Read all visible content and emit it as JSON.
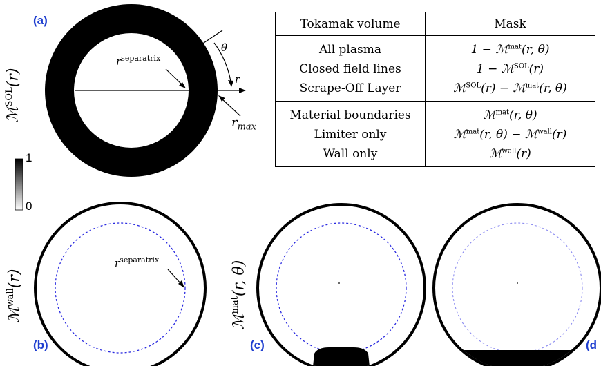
{
  "panels": {
    "a": {
      "label": "(a)",
      "ylabel_base": "ℳ",
      "ylabel_sup": "SOL",
      "ylabel_arg": "(r)",
      "annot_separatrix_base": "r",
      "annot_separatrix_sup": "separatrix",
      "annot_theta": "θ",
      "annot_r": "r",
      "annot_rmax_base": "r",
      "annot_rmax_sub": "max"
    },
    "b": {
      "label": "(b)",
      "ylabel_base": "ℳ",
      "ylabel_sup": "wall",
      "ylabel_arg": "(r)",
      "annot_separatrix_base": "r",
      "annot_separatrix_sup": "separatrix"
    },
    "c": {
      "label": "(c)",
      "ylabel_base": "ℳ",
      "ylabel_sup": "mat",
      "ylabel_arg": "(r, θ)"
    },
    "d": {
      "label": "(d"
    }
  },
  "colorbar": {
    "max_label": "1",
    "min_label": "0"
  },
  "table": {
    "headers": [
      "Tokamak volume",
      "Mask"
    ],
    "sections": [
      [
        {
          "volume": "All plasma",
          "mask": "1 − ℳ^mat(r, θ)"
        },
        {
          "volume": "Closed field lines",
          "mask": "1 − ℳ^SOL(r)"
        },
        {
          "volume": "Scrape-Off Layer",
          "mask": "ℳ^SOL(r) − ℳ^mat(r, θ)"
        }
      ],
      [
        {
          "volume": "Material boundaries",
          "mask": "ℳ^mat(r, θ)"
        },
        {
          "volume": "Limiter only",
          "mask": "ℳ^mat(r, θ) − ℳ^wall(r)"
        },
        {
          "volume": "Wall only",
          "mask": "ℳ^wall(r)"
        }
      ]
    ]
  },
  "colors": {
    "label_blue": "#1f3fd0",
    "separatrix_dashed": "#2a2ae0",
    "separatrix_light": "#8c8cf0",
    "mask_black": "#000000"
  }
}
